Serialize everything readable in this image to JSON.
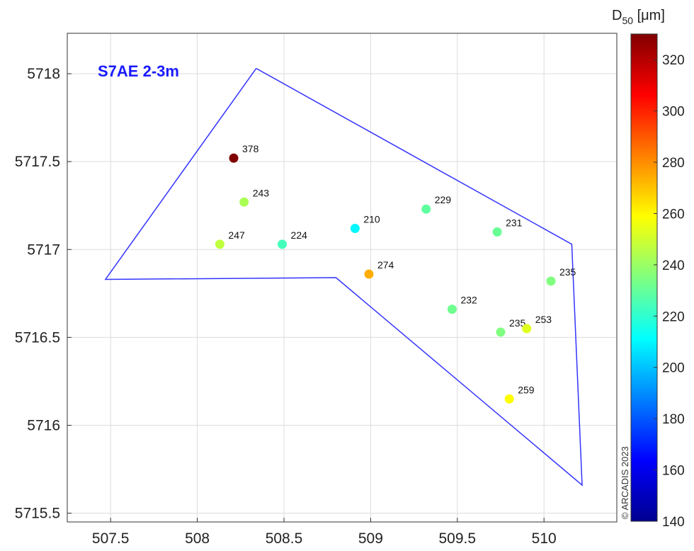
{
  "chart_data": {
    "type": "scatter",
    "title": "S7AE 2-3m",
    "xlim": [
      507.25,
      510.42
    ],
    "ylim": [
      5715.45,
      5718.23
    ],
    "x_ticks": [
      "507.5",
      "508",
      "508.5",
      "509",
      "509.5",
      "510"
    ],
    "y_ticks": [
      "5718",
      "5717.5",
      "5717",
      "5716.5",
      "5716",
      "5715.5"
    ],
    "x_tick_values": [
      507.5,
      508,
      508.5,
      509,
      509.5,
      510
    ],
    "y_tick_values": [
      5718,
      5717.5,
      5717,
      5716.5,
      5716,
      5715.5
    ],
    "grid": true,
    "polygon_color": "#3333ff",
    "polygon": [
      [
        508.34,
        5718.03
      ],
      [
        510.16,
        5717.03
      ],
      [
        510.22,
        5715.66
      ],
      [
        508.8,
        5716.84
      ],
      [
        507.47,
        5716.83
      ],
      [
        508.34,
        5718.03
      ]
    ],
    "points": [
      {
        "x": 508.21,
        "y": 5717.52,
        "value": 378,
        "label": "378"
      },
      {
        "x": 508.27,
        "y": 5717.27,
        "value": 243,
        "label": "243"
      },
      {
        "x": 508.13,
        "y": 5717.03,
        "value": 247,
        "label": "247"
      },
      {
        "x": 508.49,
        "y": 5717.03,
        "value": 224,
        "label": "224"
      },
      {
        "x": 508.91,
        "y": 5717.12,
        "value": 210,
        "label": "210"
      },
      {
        "x": 508.99,
        "y": 5716.86,
        "value": 274,
        "label": "274"
      },
      {
        "x": 509.32,
        "y": 5717.23,
        "value": 229,
        "label": "229"
      },
      {
        "x": 509.73,
        "y": 5717.1,
        "value": 231,
        "label": "231"
      },
      {
        "x": 510.04,
        "y": 5716.82,
        "value": 235,
        "label": "235"
      },
      {
        "x": 509.47,
        "y": 5716.66,
        "value": 232,
        "label": "232"
      },
      {
        "x": 509.75,
        "y": 5716.53,
        "value": 235,
        "label": "235"
      },
      {
        "x": 509.9,
        "y": 5716.55,
        "value": 253,
        "label": "253"
      },
      {
        "x": 509.8,
        "y": 5716.15,
        "value": 259,
        "label": "259"
      }
    ],
    "colorbar": {
      "label_main": "D",
      "label_sub": "50",
      "label_unit": " [μm]",
      "min": 140,
      "max": 330,
      "ticks": [
        "140",
        "160",
        "180",
        "200",
        "220",
        "240",
        "260",
        "280",
        "300",
        "320"
      ],
      "tick_values": [
        140,
        160,
        180,
        200,
        220,
        240,
        260,
        280,
        300,
        320
      ],
      "colormap": "jet"
    },
    "copyright": "© ARCADIS 2023"
  }
}
